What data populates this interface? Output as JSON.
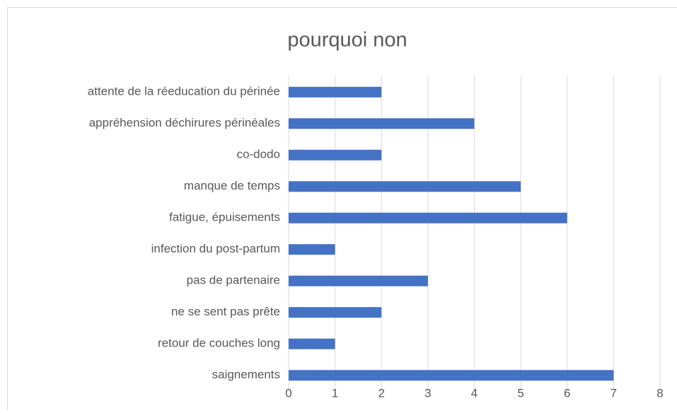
{
  "chart_data": {
    "type": "bar",
    "orientation": "horizontal",
    "title": "pourquoi non",
    "categories": [
      "attente de la réeducation du périnée",
      "appréhension déchirures périnéales",
      "co-dodo",
      "manque de temps",
      "fatigue, épuisements",
      "infection du post-partum",
      "pas de partenaire",
      "ne se sent pas prête",
      "retour de couches long",
      "saignements"
    ],
    "values": [
      2,
      4,
      2,
      5,
      6,
      1,
      3,
      2,
      1,
      7
    ],
    "color": "#4472c4",
    "xlim": [
      0,
      8
    ],
    "xticks": [
      0,
      1,
      2,
      3,
      4,
      5,
      6,
      7,
      8
    ],
    "grid": true
  }
}
